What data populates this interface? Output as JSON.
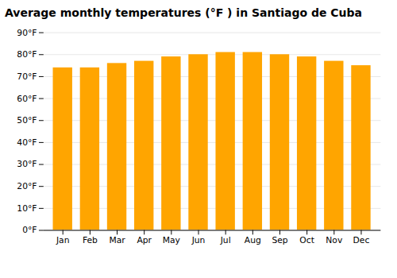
{
  "chart_data": {
    "type": "bar",
    "title": "Average monthly temperatures (°F ) in Santiago de Cuba",
    "categories": [
      "Jan",
      "Feb",
      "Mar",
      "Apr",
      "May",
      "Jun",
      "Jul",
      "Aug",
      "Sep",
      "Oct",
      "Nov",
      "Dec"
    ],
    "values": [
      74,
      74,
      76,
      77,
      79,
      80,
      81,
      81,
      80,
      79,
      77,
      75
    ],
    "color": "#FFA500",
    "ylim": [
      0,
      90
    ],
    "yticks": [
      {
        "value": 0,
        "label": "0°F"
      },
      {
        "value": 10,
        "label": "10°F"
      },
      {
        "value": 20,
        "label": "20°F"
      },
      {
        "value": 30,
        "label": "30°F"
      },
      {
        "value": 40,
        "label": "40°F"
      },
      {
        "value": 50,
        "label": "50°F"
      },
      {
        "value": 60,
        "label": "60°F"
      },
      {
        "value": 70,
        "label": "70°F"
      },
      {
        "value": 80,
        "label": "80°F"
      },
      {
        "value": 90,
        "label": "90°F"
      }
    ],
    "grid": true
  }
}
